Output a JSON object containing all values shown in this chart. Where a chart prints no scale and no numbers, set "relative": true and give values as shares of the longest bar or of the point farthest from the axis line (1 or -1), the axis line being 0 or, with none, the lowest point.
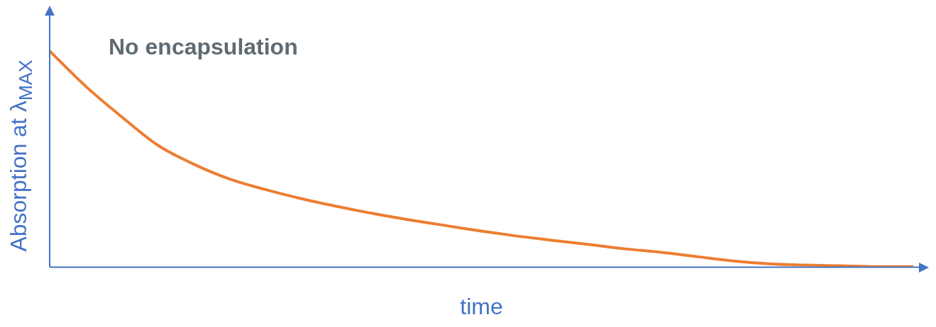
{
  "chart_data": {
    "type": "line",
    "relative": true,
    "title": "No encapsulation",
    "xlabel": "time",
    "ylabel": "Absorption at λ$_{MAX}$",
    "categories": [
      null,
      null,
      null,
      null,
      null,
      null,
      null,
      null,
      null,
      null,
      null,
      null,
      null,
      null,
      null,
      null,
      null,
      null,
      null,
      null,
      null,
      null,
      null,
      null,
      null
    ],
    "series": [
      {
        "color": "#ed7d31",
        "values": [
          1,
          0.837,
          0.696,
          0.565,
          0.477,
          0.408,
          0.359,
          0.317,
          0.281,
          0.248,
          0.219,
          0.193,
          0.167,
          0.144,
          0.124,
          0.105,
          0.085,
          0.069,
          0.049,
          0.029,
          0.016,
          0.01,
          0.007,
          0.003,
          0.003
        ]
      }
    ],
    "grid": false,
    "legend": false,
    "marker": "none",
    "line_style": "solid"
  }
}
